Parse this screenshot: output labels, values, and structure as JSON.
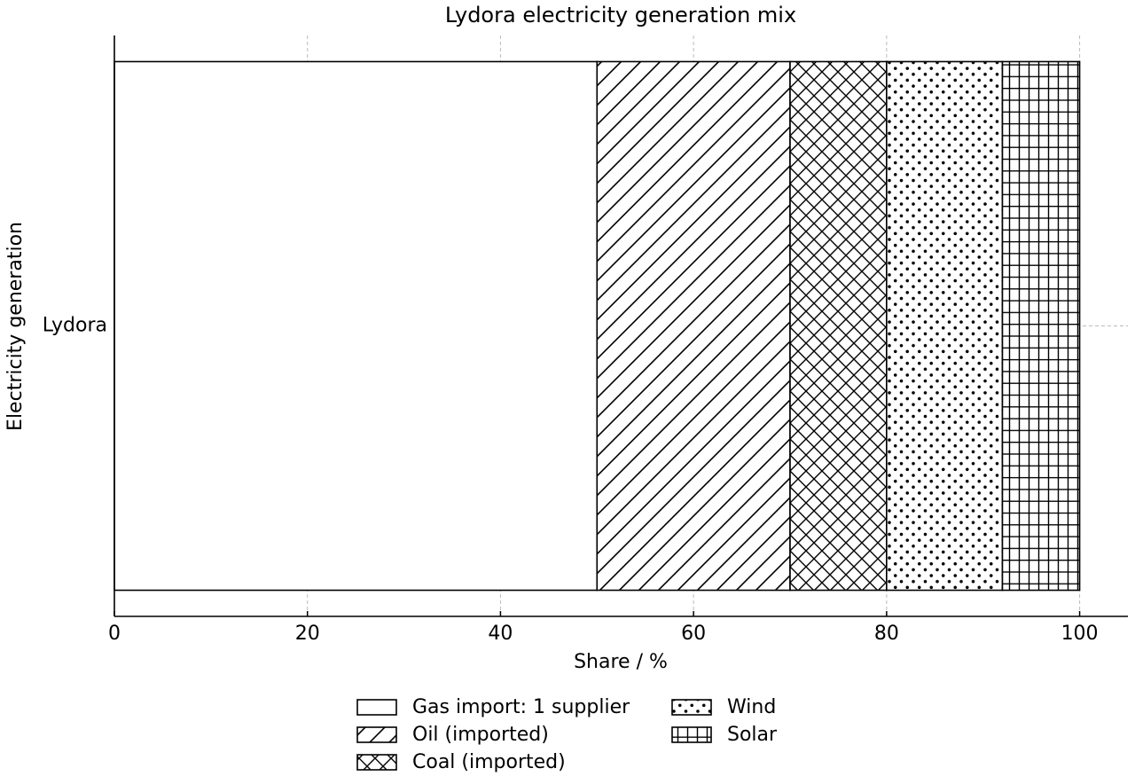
{
  "chart_data": {
    "type": "stacked-barh",
    "title": "Lydora electricity generation mix",
    "xlabel": "Share / %",
    "ylabel": "Electricity generation",
    "categories": [
      "Lydora"
    ],
    "series": [
      {
        "name": "Gas import: 1 supplier",
        "color": "#ffffff",
        "hatch": "",
        "values": [
          50
        ]
      },
      {
        "name": "Oil (imported)",
        "color": "#ffffff",
        "hatch": "/",
        "values": [
          20
        ]
      },
      {
        "name": "Coal (imported)",
        "color": "#ffffff",
        "hatch": "x",
        "values": [
          10
        ]
      },
      {
        "name": "Wind",
        "color": "#ffffff",
        "hatch": ".",
        "values": [
          12
        ]
      },
      {
        "name": "Solar",
        "color": "#ffffff",
        "hatch": "+",
        "values": [
          8
        ]
      }
    ],
    "xlim": [
      0,
      105
    ],
    "xticks": [
      0,
      20,
      40,
      60,
      80,
      100
    ],
    "grid": true,
    "legend": "bottom"
  }
}
